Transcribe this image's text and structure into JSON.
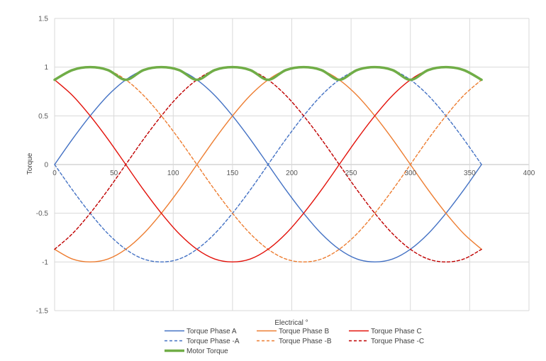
{
  "chart_data": {
    "type": "line",
    "title": "",
    "xlabel": "Electrical °",
    "ylabel": "Torque",
    "xlim": [
      0,
      400
    ],
    "ylim": [
      -1.5,
      1.5
    ],
    "x_ticks": [
      0,
      50,
      100,
      150,
      200,
      250,
      300,
      350,
      400
    ],
    "y_ticks": [
      1.5,
      1,
      0.5,
      0,
      -0.5,
      -1,
      -1.5
    ],
    "x_tick_labels": [
      "0",
      "50",
      "100",
      "150",
      "200",
      "250",
      "300",
      "350",
      "400"
    ],
    "y_tick_labels": [
      "1.5",
      "1",
      "0.5",
      "0",
      "-0.5",
      "-1",
      "-1.5"
    ],
    "grid": true,
    "legend_position": "bottom",
    "x": [
      0,
      15,
      30,
      45,
      60,
      75,
      90,
      105,
      120,
      135,
      150,
      165,
      180,
      195,
      210,
      225,
      240,
      255,
      270,
      285,
      300,
      315,
      330,
      345,
      360
    ],
    "series": [
      {
        "name": "Torque Phase A",
        "color": "#4472C4",
        "dash": "solid",
        "width": 1.4,
        "values": [
          0,
          0.26,
          0.5,
          0.71,
          0.87,
          0.97,
          1,
          0.97,
          0.87,
          0.71,
          0.5,
          0.26,
          0,
          -0.26,
          -0.5,
          -0.71,
          -0.87,
          -0.97,
          -1,
          -0.97,
          -0.87,
          -0.71,
          -0.5,
          -0.26,
          0
        ]
      },
      {
        "name": "Torque Phase -A",
        "color": "#4472C4",
        "dash": "dashed",
        "width": 1.4,
        "values": [
          0,
          -0.26,
          -0.5,
          -0.71,
          -0.87,
          -0.97,
          -1,
          -0.97,
          -0.87,
          -0.71,
          -0.5,
          -0.26,
          0,
          0.26,
          0.5,
          0.71,
          0.87,
          0.97,
          1,
          0.97,
          0.87,
          0.71,
          0.5,
          0.26,
          0
        ]
      },
      {
        "name": "Torque Phase B",
        "color": "#ED7D31",
        "dash": "solid",
        "width": 1.4,
        "values": [
          -0.87,
          -0.97,
          -1,
          -0.97,
          -0.87,
          -0.71,
          -0.5,
          -0.26,
          0,
          0.26,
          0.5,
          0.71,
          0.87,
          0.97,
          1,
          0.97,
          0.87,
          0.71,
          0.5,
          0.26,
          0,
          -0.26,
          -0.5,
          -0.71,
          -0.87
        ]
      },
      {
        "name": "Torque Phase -B",
        "color": "#ED7D31",
        "dash": "dashed",
        "width": 1.4,
        "values": [
          0.87,
          0.97,
          1,
          0.97,
          0.87,
          0.71,
          0.5,
          0.26,
          0,
          -0.26,
          -0.5,
          -0.71,
          -0.87,
          -0.97,
          -1,
          -0.97,
          -0.87,
          -0.71,
          -0.5,
          -0.26,
          0,
          0.26,
          0.5,
          0.71,
          0.87
        ]
      },
      {
        "name": "Torque Phase C",
        "color": "#E3120B",
        "dash": "solid",
        "width": 1.4,
        "values": [
          0.87,
          0.71,
          0.5,
          0.26,
          0,
          -0.26,
          -0.5,
          -0.71,
          -0.87,
          -0.97,
          -1,
          -0.97,
          -0.87,
          -0.71,
          -0.5,
          -0.26,
          0,
          0.26,
          0.5,
          0.71,
          0.87,
          0.97,
          1,
          0.97,
          0.87
        ]
      },
      {
        "name": "Torque Phase -C",
        "color": "#C00000",
        "dash": "dashed",
        "width": 1.4,
        "values": [
          -0.87,
          -0.71,
          -0.5,
          -0.26,
          0,
          0.26,
          0.5,
          0.71,
          0.87,
          0.97,
          1,
          0.97,
          0.87,
          0.71,
          0.5,
          0.26,
          0,
          -0.26,
          -0.5,
          -0.71,
          -0.87,
          -0.97,
          -1,
          -0.97,
          -0.87
        ]
      },
      {
        "name": "Motor Torque",
        "color": "#70AD47",
        "dash": "solid",
        "width": 3.5,
        "values": [
          0.87,
          0.97,
          1,
          0.97,
          0.87,
          0.97,
          1,
          0.97,
          0.87,
          0.97,
          1,
          0.97,
          0.87,
          0.97,
          1,
          0.97,
          0.87,
          0.97,
          1,
          0.97,
          0.87,
          0.97,
          1,
          0.97,
          0.87
        ]
      }
    ],
    "legend_order": [
      "Torque Phase A",
      "Torque Phase B",
      "Torque Phase C",
      "Torque Phase -A",
      "Torque Phase -B",
      "Torque Phase -C",
      "Motor Torque"
    ]
  }
}
